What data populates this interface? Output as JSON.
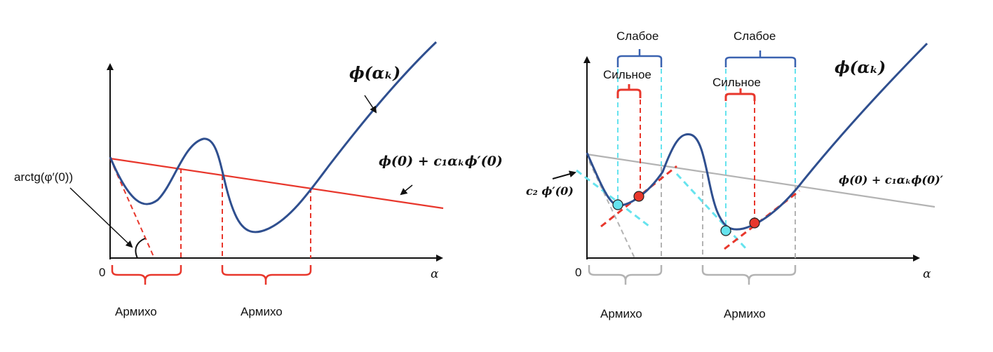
{
  "left_diagram": {
    "origin_label": "0",
    "x_axis_label": "α",
    "curve_label": "ϕ(αₖ)",
    "line_label": "ϕ(0) + c₁αₖϕ′(0)",
    "angle_label": "arctg(φ′(0))",
    "armijo_1": "Армихо",
    "armijo_2": "Армихо"
  },
  "right_diagram": {
    "origin_label": "0",
    "x_axis_label": "α",
    "curve_label": "ϕ(αₖ)",
    "line_label": "ϕ(0) + c₁αₖϕ(0)′",
    "c2_label": "c₂ ϕ′(0)",
    "weak_1": "Слабое",
    "weak_2": "Слабое",
    "strong_1": "Сильное",
    "strong_2": "Сильное",
    "armijo_1": "Армихо",
    "armijo_2": "Армихо"
  },
  "colors": {
    "curve": "#2f4f8f",
    "armijo_line": "#e8372c",
    "gray_line": "#b3b3b3",
    "cyan": "#66e3ee",
    "weak_bracket": "#3a62b0",
    "strong_bracket": "#e8372c"
  }
}
